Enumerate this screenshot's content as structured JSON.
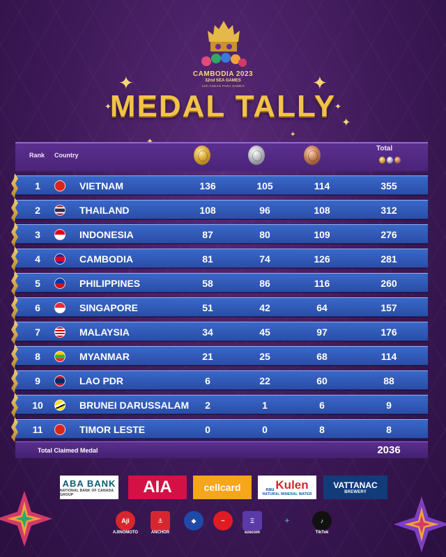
{
  "event": {
    "line1": "CAMBODIA 2023",
    "line2": "32nd SEA GAMES",
    "line3": "12th ASEAN PARA GAMES"
  },
  "title": "MEDAL TALLY",
  "table": {
    "headers": {
      "rank": "Rank",
      "country": "Country",
      "total": "Total"
    },
    "medal_icons": [
      "gold-medal-icon",
      "silver-medal-icon",
      "bronze-medal-icon"
    ],
    "rows": [
      {
        "rank": "1",
        "country": "VIETNAM",
        "gold": "136",
        "silver": "105",
        "bronze": "114",
        "total": "355",
        "flag": "vietnam-flag-icon"
      },
      {
        "rank": "2",
        "country": "THAILAND",
        "gold": "108",
        "silver": "96",
        "bronze": "108",
        "total": "312",
        "flag": "thailand-flag-icon"
      },
      {
        "rank": "3",
        "country": "INDONESIA",
        "gold": "87",
        "silver": "80",
        "bronze": "109",
        "total": "276",
        "flag": "indonesia-flag-icon"
      },
      {
        "rank": "4",
        "country": "CAMBODIA",
        "gold": "81",
        "silver": "74",
        "bronze": "126",
        "total": "281",
        "flag": "cambodia-flag-icon"
      },
      {
        "rank": "5",
        "country": "PHILIPPINES",
        "gold": "58",
        "silver": "86",
        "bronze": "116",
        "total": "260",
        "flag": "philippines-flag-icon"
      },
      {
        "rank": "6",
        "country": "SINGAPORE",
        "gold": "51",
        "silver": "42",
        "bronze": "64",
        "total": "157",
        "flag": "singapore-flag-icon"
      },
      {
        "rank": "7",
        "country": "MALAYSIA",
        "gold": "34",
        "silver": "45",
        "bronze": "97",
        "total": "176",
        "flag": "malaysia-flag-icon"
      },
      {
        "rank": "8",
        "country": "MYANMAR",
        "gold": "21",
        "silver": "25",
        "bronze": "68",
        "total": "114",
        "flag": "myanmar-flag-icon"
      },
      {
        "rank": "9",
        "country": "LAO PDR",
        "gold": "6",
        "silver": "22",
        "bronze": "60",
        "total": "88",
        "flag": "laos-flag-icon"
      },
      {
        "rank": "10",
        "country": "BRUNEI DARUSSALAM",
        "gold": "2",
        "silver": "1",
        "bronze": "6",
        "total": "9",
        "flag": "brunei-flag-icon"
      },
      {
        "rank": "11",
        "country": "TIMOR LESTE",
        "gold": "0",
        "silver": "0",
        "bronze": "8",
        "total": "8",
        "flag": "timor-leste-flag-icon"
      }
    ],
    "footer": {
      "label": "Total Claimed Medal",
      "total": "2036"
    }
  },
  "sponsors": {
    "aba": {
      "name": "ABA BANK",
      "sub": "NATIONAL BANK OF CANADA GROUP"
    },
    "aia": {
      "name": "AIA"
    },
    "cellcard": {
      "name": "cellcard"
    },
    "kulen": {
      "name": "Kulen",
      "prefix": "eau",
      "sub": "NATURAL MINERAL WATER"
    },
    "vattanac": {
      "name": "VATTANAC",
      "sub": "BREWERY"
    },
    "small": [
      {
        "caption": "AJINOMOTO",
        "icon": "ajinomoto-logo-icon"
      },
      {
        "caption": "ANCHOR",
        "icon": "anchor-logo-icon"
      },
      {
        "caption": "",
        "icon": "khmer-logo-icon"
      },
      {
        "caption": "",
        "icon": "coca-cola-logo-icon"
      },
      {
        "caption": "ezecom",
        "icon": "ezecom-logo-icon"
      },
      {
        "caption": "",
        "icon": "sbt-logo-icon"
      },
      {
        "caption": "TikTok",
        "icon": "tiktok-logo-icon"
      }
    ]
  },
  "colors": {
    "background": "#3d1957",
    "title_gold": "#f2c24a",
    "row_blue": "#3a68c8",
    "header_purple": "#5b2f8f"
  }
}
